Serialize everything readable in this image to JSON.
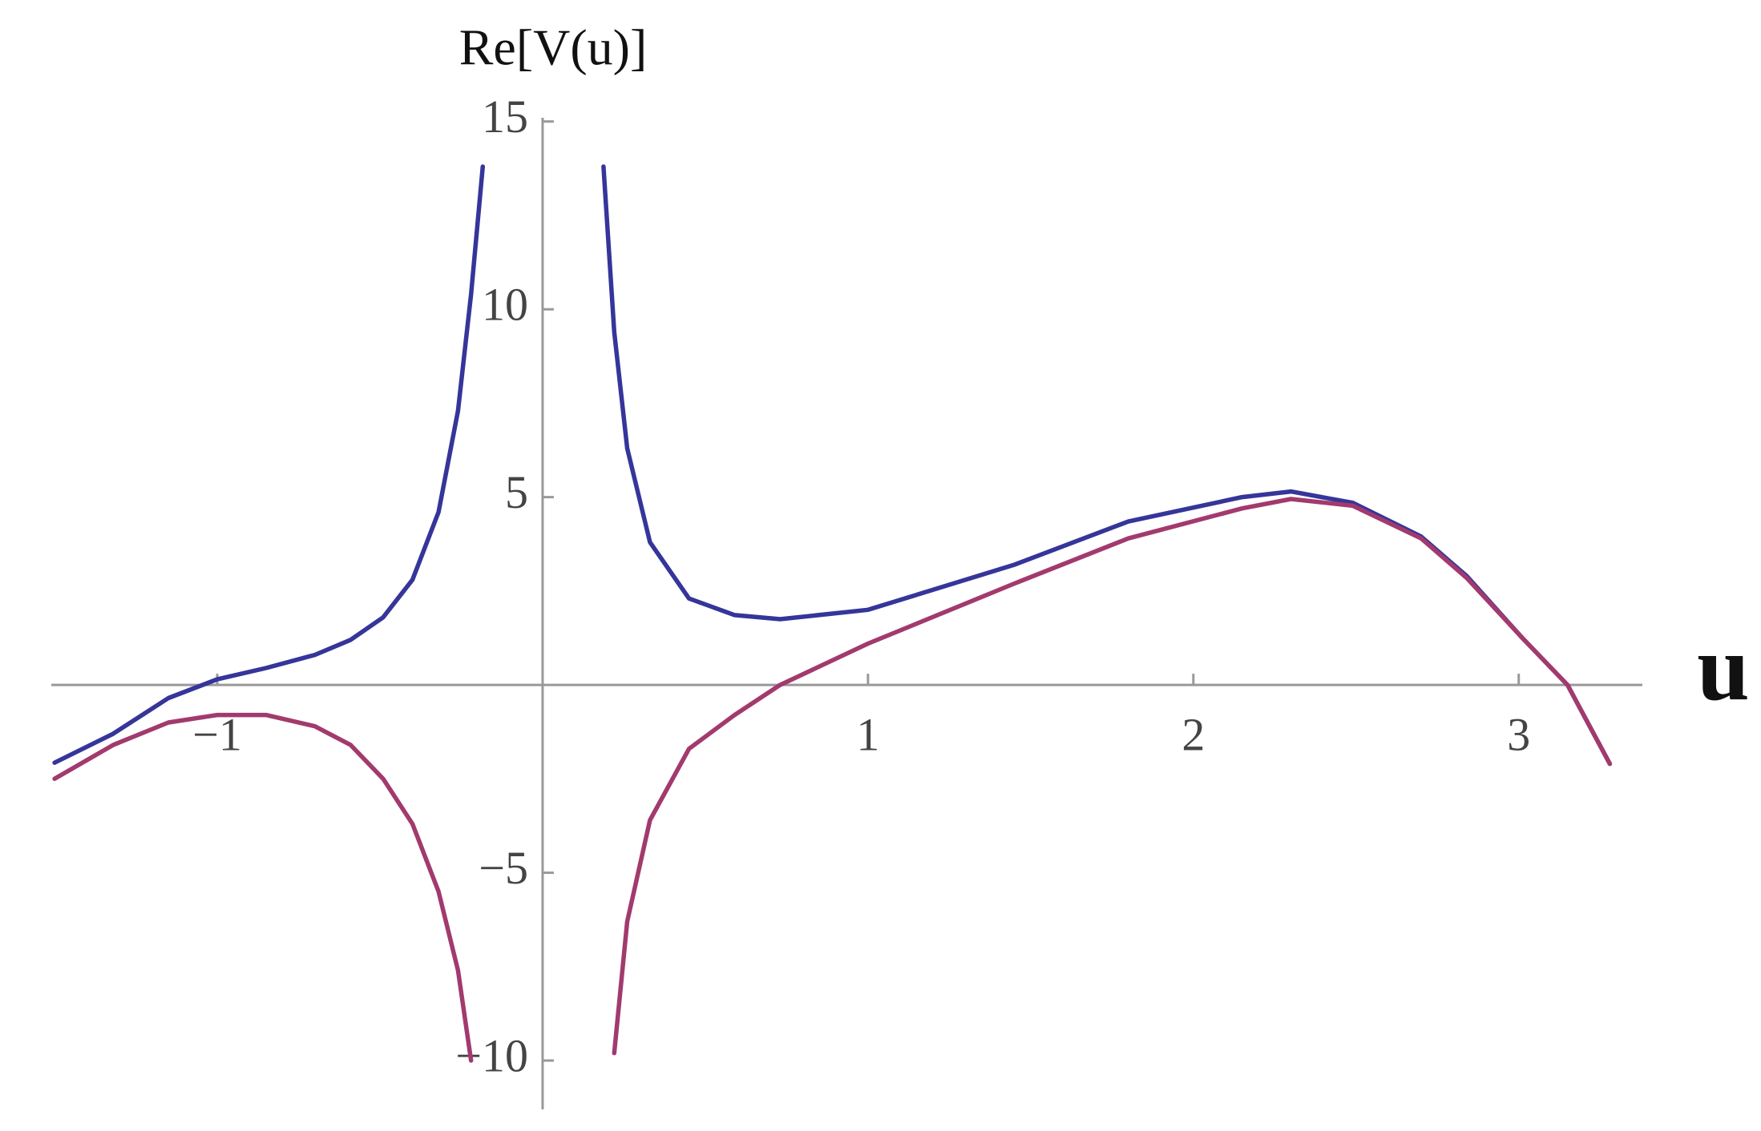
{
  "chart_data": {
    "type": "line",
    "xlabel": "u",
    "ylabel": "Re[V(u)]",
    "x": [
      -1.5,
      -1.32,
      -1.15,
      -1.0,
      -0.85,
      -0.7,
      -0.59,
      -0.49,
      -0.4,
      -0.32,
      -0.26,
      -0.22,
      -0.184,
      0,
      0.187,
      0.22,
      0.26,
      0.33,
      0.45,
      0.59,
      0.73,
      1.0,
      1.45,
      1.8,
      2.15,
      2.3,
      2.49,
      2.7,
      2.84,
      3.01,
      3.15,
      3.28
    ],
    "series": [
      {
        "color": "#35359a",
        "values": [
          -2.07,
          -1.3,
          -0.35,
          0.15,
          0.45,
          0.8,
          1.2,
          1.8,
          2.8,
          4.6,
          7.3,
          10.4,
          13.8,
          null,
          13.8,
          9.4,
          6.3,
          3.8,
          2.3,
          1.86,
          1.75,
          2.0,
          3.2,
          4.35,
          5.0,
          5.15,
          4.85,
          3.95,
          2.9,
          1.26,
          0,
          -2.1
        ]
      },
      {
        "color": "#a23a6e",
        "values": [
          -2.5,
          -1.6,
          -1.0,
          -0.8,
          -0.8,
          -1.1,
          -1.6,
          -2.5,
          -3.7,
          -5.5,
          -7.6,
          -10.0,
          null,
          null,
          null,
          -9.8,
          -6.3,
          -3.6,
          -1.7,
          -0.8,
          0.0,
          1.1,
          2.7,
          3.9,
          4.7,
          4.95,
          4.77,
          3.9,
          2.85,
          1.26,
          0,
          -2.1
        ]
      }
    ],
    "xlim": [
      -1.51,
      3.38
    ],
    "ylim": [
      -11.3,
      15.1
    ],
    "xticks": [
      {
        "value": -1,
        "label": "−1"
      },
      1,
      2,
      3
    ],
    "yticks": [
      {
        "value": -10,
        "label": "−10"
      },
      {
        "value": -5,
        "label": "−5"
      },
      5,
      10,
      15
    ]
  }
}
